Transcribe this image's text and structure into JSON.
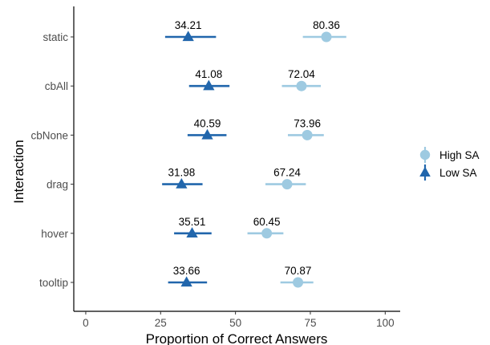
{
  "chart_data": {
    "type": "scatter",
    "xlabel": "Proportion of Correct Answers",
    "ylabel": "Interaction",
    "xlim": [
      -4,
      105
    ],
    "xticks": [
      0,
      25,
      50,
      75,
      100
    ],
    "grid": false,
    "legend_position": "right",
    "categories": [
      "static",
      "cbAll",
      "cbNone",
      "drag",
      "hover",
      "tooltip"
    ],
    "series": [
      {
        "name": "High SA",
        "marker": "circle",
        "color": "#9ecae1",
        "values": [
          80.36,
          72.04,
          73.96,
          67.24,
          60.45,
          70.87
        ],
        "ci_low": [
          72.5,
          65.5,
          67.5,
          60.0,
          54.0,
          65.0
        ],
        "ci_high": [
          87.0,
          78.5,
          79.5,
          73.5,
          66.0,
          76.0
        ],
        "labels": [
          "80.36",
          "72.04",
          "73.96",
          "67.24",
          "60.45",
          "70.87"
        ]
      },
      {
        "name": "Low SA",
        "marker": "triangle",
        "color": "#2166ac",
        "values": [
          34.21,
          41.08,
          40.59,
          31.98,
          35.51,
          33.66
        ],
        "ci_low": [
          26.5,
          34.5,
          34.0,
          25.5,
          29.5,
          27.5
        ],
        "ci_high": [
          43.5,
          48.0,
          47.0,
          39.0,
          42.0,
          40.5
        ],
        "labels": [
          "34.21",
          "41.08",
          "40.59",
          "31.98",
          "35.51",
          "33.66"
        ]
      }
    ]
  }
}
